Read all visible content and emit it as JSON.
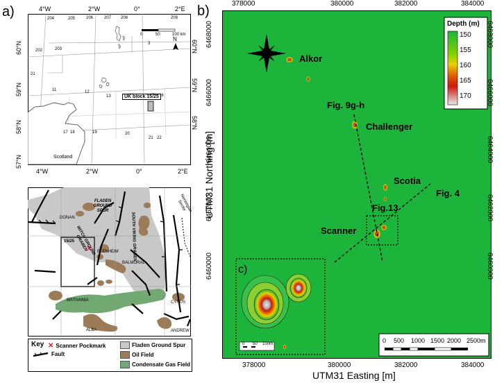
{
  "panels": {
    "a_label": "a)",
    "b_label": "b)",
    "c_label": "c)"
  },
  "map_a": {
    "lon_ticks": [
      "4°W",
      "2°W",
      "0°",
      "2°E"
    ],
    "lat_ticks": [
      "60°N",
      "59°N",
      "58°N",
      "57°N"
    ],
    "block_numbers": [
      "204",
      "205",
      "206",
      "207",
      "208",
      "209",
      "202",
      "203",
      "3",
      "21",
      "11",
      "12",
      "13",
      "14",
      "15",
      "16",
      "17",
      "18",
      "19",
      "20",
      "21",
      "22"
    ],
    "scotland_label": "Scotland",
    "block_label": "UK block 15/25",
    "scale_ticks": [
      "0",
      "50",
      "100 km"
    ],
    "north_label": "N"
  },
  "inset_map": {
    "features": {
      "fladen": "FLADEN\nGROUND\nSPUR",
      "svg": "SOUTH VIKING GRABEN",
      "wgg": "WITCH GROUND\nGRABEN",
      "norwegian": "Norwegian\nSector"
    },
    "fields": [
      "DONAN",
      "BLENHEIM",
      "BALMORAL",
      "BRITANNIA",
      "CYRUS",
      "ALBA",
      "ANDREW"
    ],
    "block": "15/25",
    "marker": "X"
  },
  "legend": {
    "key": "Key",
    "items": [
      "Scanner Pockmark",
      "Fault",
      "Fladen Ground Spur",
      "Oil Field",
      "Condensate Gas Field"
    ],
    "colors": {
      "fladen": "#c8c8c8",
      "oil": "#9b7b58",
      "gas": "#72a872",
      "marker": "#d42020"
    }
  },
  "map_b": {
    "x_ticks": [
      "378000",
      "380000",
      "382000",
      "384000"
    ],
    "y_ticks": [
      "6468000",
      "6466000",
      "6464000",
      "6462000",
      "6460000"
    ],
    "x_label": "UTM31 Easting [m]",
    "y_label": "UTM31 Northing [m]",
    "features": [
      "Alkor",
      "Challenger",
      "Scotia",
      "Scanner"
    ],
    "figure_refs": [
      "Fig. 9g-h",
      "Fig. 4",
      "Fig.13"
    ],
    "colorbar": {
      "title": "Depth (m)",
      "ticks": [
        "150",
        "155",
        "160",
        "165",
        "170"
      ]
    },
    "scale": {
      "ticks": [
        "0",
        "500",
        "1000",
        "1500",
        "2000",
        "2500m"
      ]
    },
    "inset_scale": [
      "0",
      "50",
      "100m"
    ],
    "colors": {
      "seabed": "#1db43c",
      "deep": "#b0b0b0",
      "mid": "#e8d000",
      "red": "#cc1a10"
    }
  }
}
